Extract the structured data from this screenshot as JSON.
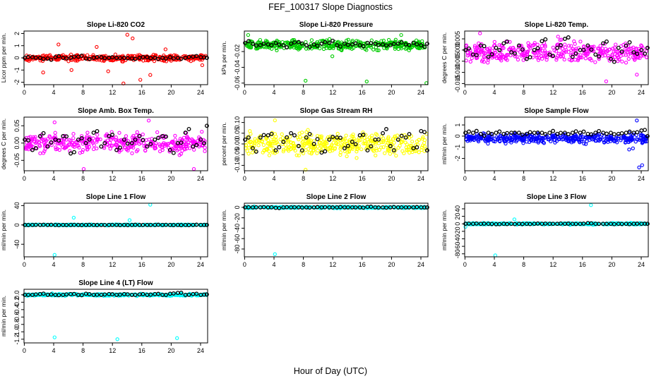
{
  "figure": {
    "title": "FEF_100317  Slope Diagnostics",
    "xlabel": "Hour of Day (UTC)"
  },
  "chart_data": [
    {
      "type": "scatter",
      "title": "Slope Li-820 CO2",
      "ylabel": "Licor ppm per min.",
      "color": "#ff0000",
      "xlim": [
        0,
        24
      ],
      "xticks": [
        0,
        4,
        8,
        12,
        16,
        20,
        24
      ],
      "ylim": [
        -2.2,
        2.2
      ],
      "yticks": [
        -2,
        -1,
        0,
        1,
        2
      ],
      "ytick_labels": [
        "-2",
        "-1",
        "0",
        "1",
        "2"
      ],
      "base_mean": 0,
      "base_spread": 0.35,
      "outliers": [
        [
          13.5,
          1.9
        ],
        [
          14.2,
          1.6
        ],
        [
          13.0,
          -2.1
        ],
        [
          15.2,
          -1.8
        ],
        [
          16.5,
          -1.4
        ],
        [
          2.5,
          -1.2
        ],
        [
          4.5,
          1.1
        ],
        [
          6.2,
          -1.0
        ],
        [
          9.5,
          0.9
        ],
        [
          11.0,
          -1.1
        ],
        [
          18.5,
          0.7
        ],
        [
          23.3,
          -0.6
        ]
      ],
      "hourly": [
        0,
        0.05,
        0,
        -0.05,
        0.05,
        0,
        0,
        0.1,
        -0.05,
        0,
        0.05,
        0,
        0,
        0,
        -0.05,
        0,
        0.05,
        0,
        0,
        0.05,
        0,
        0,
        0.1,
        0.05,
        0
      ]
    },
    {
      "type": "scatter",
      "title": "Slope Li-820 Pressure",
      "ylabel": "kPa per min.",
      "color": "#00cc00",
      "xlim": [
        0,
        24
      ],
      "xticks": [
        0,
        4,
        8,
        12,
        16,
        20,
        24
      ],
      "ylim": [
        -0.062,
        0.006
      ],
      "yticks": [
        -0.06,
        -0.04,
        -0.02
      ],
      "ytick_labels": [
        "-0.06",
        "-0.04",
        "-0.02"
      ],
      "base_mean": -0.012,
      "base_spread": 0.009,
      "outliers": [
        [
          8.0,
          -0.057
        ],
        [
          16.0,
          -0.058
        ],
        [
          23.8,
          -0.06
        ],
        [
          0.5,
          0.001
        ],
        [
          20.5,
          0.001
        ],
        [
          11.5,
          -0.026
        ]
      ],
      "hourly": [
        -0.009,
        -0.01,
        -0.012,
        -0.011,
        -0.009,
        -0.012,
        -0.01,
        -0.008,
        -0.012,
        -0.011,
        -0.01,
        -0.009,
        -0.012,
        -0.01,
        -0.011,
        -0.012,
        -0.009,
        -0.01,
        -0.011,
        -0.012,
        -0.01,
        -0.011,
        -0.009,
        -0.012,
        -0.01
      ]
    },
    {
      "type": "scatter",
      "title": "Slope Li-820 Temp.",
      "ylabel": "degrees C per min.",
      "color": "#ff00ff",
      "xlim": [
        0,
        24
      ],
      "xticks": [
        0,
        4,
        8,
        12,
        16,
        20,
        24
      ],
      "ylim": [
        -0.0155,
        0.0085
      ],
      "yticks": [
        -0.015,
        -0.01,
        -0.005,
        0.0,
        0.005
      ],
      "ytick_labels": [
        "-0.015",
        "-0.010",
        "-0.005",
        "0.000",
        "0.005"
      ],
      "base_mean": -0.001,
      "base_spread": 0.0065,
      "outliers": [
        [
          2.0,
          0.0075
        ],
        [
          18.5,
          -0.014
        ],
        [
          12.2,
          0.006
        ],
        [
          22.5,
          -0.011
        ]
      ],
      "hourly": [
        0,
        -0.002,
        0.002,
        -0.003,
        0.001,
        0.003,
        -0.001,
        0.002,
        -0.004,
        0,
        0.004,
        -0.002,
        0.001,
        0.005,
        -0.003,
        0,
        0.002,
        -0.002,
        0.003,
        -0.004,
        0.001,
        0.002,
        -0.001,
        0,
        0.001
      ]
    },
    {
      "type": "scatter",
      "title": "Slope Amb. Box Temp.",
      "ylabel": "degrees C per min.",
      "color": "#ff00ff",
      "xlim": [
        0,
        24
      ],
      "xticks": [
        0,
        4,
        8,
        12,
        16,
        20,
        24
      ],
      "ylim": [
        -0.08,
        0.075
      ],
      "yticks": [
        -0.05,
        0.0,
        0.05
      ],
      "ytick_labels": [
        "-0.05",
        "0.00",
        "0.05"
      ],
      "base_mean": 0,
      "base_spread": 0.04,
      "outliers": [
        [
          7.8,
          -0.075
        ],
        [
          22.2,
          -0.075
        ],
        [
          16.3,
          0.065
        ],
        [
          4.0,
          0.06
        ]
      ],
      "hourly": [
        0.01,
        -0.02,
        0.02,
        -0.01,
        0.01,
        0.02,
        -0.03,
        0.01,
        0,
        0.03,
        -0.01,
        0.02,
        -0.02,
        0.01,
        0,
        0.02,
        -0.01,
        0.01,
        0.02,
        -0.02,
        0,
        0.03,
        -0.01,
        0.01,
        0.05
      ]
    },
    {
      "type": "scatter",
      "title": "Slope Gas Stream RH",
      "ylabel": "percent per min.",
      "color": "#ffff00",
      "xlim": [
        0,
        24
      ],
      "xticks": [
        0,
        4,
        8,
        12,
        16,
        20,
        24
      ],
      "ylim": [
        -0.125,
        0.125
      ],
      "yticks": [
        -0.1,
        -0.05,
        0.0,
        0.05,
        0.1
      ],
      "ytick_labels": [
        "-0.10",
        "-0.05",
        "0.00",
        "0.05",
        "0.10"
      ],
      "base_mean": 0,
      "base_spread": 0.075,
      "outliers": [
        [
          8.0,
          -0.12
        ],
        [
          4.0,
          0.11
        ]
      ],
      "hourly": [
        0.02,
        -0.02,
        0.03,
        0.04,
        -0.03,
        0.01,
        0.05,
        -0.01,
        0.03,
        0,
        -0.04,
        0.02,
        0.03,
        -0.02,
        0.01,
        0.04,
        -0.03,
        0.02,
        0.05,
        -0.01,
        0.02,
        0.03,
        -0.02,
        0.06,
        -0.03
      ]
    },
    {
      "type": "scatter",
      "title": "Slope Sample Flow",
      "ylabel": "ml/min per min.",
      "color": "#0000ff",
      "xlim": [
        0,
        24
      ],
      "xticks": [
        0,
        4,
        8,
        12,
        16,
        20,
        24
      ],
      "ylim": [
        -3.1,
        1.7
      ],
      "yticks": [
        -2,
        -1,
        0,
        1
      ],
      "ytick_labels": [
        "-2",
        "-1",
        "0",
        "1"
      ],
      "base_mean": -0.2,
      "base_spread": 0.6,
      "outliers": [
        [
          22.8,
          -2.8
        ],
        [
          23.2,
          -2.6
        ],
        [
          22.5,
          1.4
        ],
        [
          21.5,
          -1.2
        ],
        [
          22.0,
          -1.1
        ]
      ],
      "hourly": [
        0.3,
        0.3,
        0.2,
        0.3,
        0.3,
        0.2,
        0.3,
        0.3,
        0.2,
        0.3,
        0.3,
        0.3,
        0.2,
        0.3,
        0.3,
        0.3,
        0.2,
        0.3,
        0.3,
        0.3,
        0.2,
        0.3,
        0.3,
        0.5,
        0
      ]
    },
    {
      "type": "scatter",
      "title": "Slope Line 1 Flow",
      "ylabel": "ml/min per min.",
      "color": "#00ffff",
      "xlim": [
        0,
        24
      ],
      "xticks": [
        0,
        4,
        8,
        12,
        16,
        20,
        24
      ],
      "ylim": [
        -66,
        45
      ],
      "yticks": [
        -40,
        0,
        40
      ],
      "ytick_labels": [
        "-40",
        "0",
        "40"
      ],
      "base_mean": 0,
      "base_spread": 1.5,
      "outliers": [
        [
          4.0,
          -62
        ],
        [
          16.5,
          42
        ],
        [
          6.5,
          15
        ],
        [
          13.8,
          10
        ]
      ],
      "hourly": [
        0,
        0,
        0,
        0,
        0,
        0,
        0,
        0,
        0,
        0,
        0,
        0,
        0,
        0,
        0,
        0,
        0,
        0,
        0,
        0,
        0,
        0,
        0,
        0,
        0
      ]
    },
    {
      "type": "scatter",
      "title": "Slope Line 2 Flow",
      "ylabel": "ml/min per min.",
      "color": "#00ffff",
      "xlim": [
        0,
        24
      ],
      "xticks": [
        0,
        4,
        8,
        12,
        16,
        20,
        24
      ],
      "ylim": [
        -95,
        8
      ],
      "yticks": [
        -80,
        -60,
        -40,
        -20,
        0
      ],
      "ytick_labels": [
        "-80",
        "-60",
        "-40",
        "-20",
        "0"
      ],
      "base_mean": 0,
      "base_spread": 2,
      "outliers": [
        [
          4.0,
          -90
        ]
      ],
      "hourly": [
        0,
        0,
        0,
        0,
        -1,
        0,
        0,
        0,
        0,
        0,
        0,
        0,
        0,
        0,
        0,
        0,
        1,
        0,
        0,
        0,
        0,
        0,
        0,
        0,
        0
      ]
    },
    {
      "type": "scatter",
      "title": "Slope Line 3 Flow",
      "ylabel": "ml/min per min.",
      "color": "#00ffff",
      "xlim": [
        0,
        24
      ],
      "xticks": [
        0,
        4,
        8,
        12,
        16,
        20,
        24
      ],
      "ylim": [
        -88,
        55
      ],
      "yticks": [
        -80,
        -60,
        -40,
        -20,
        0,
        20,
        40
      ],
      "ytick_labels": [
        "-80",
        "-60",
        "-40",
        "-20",
        "0",
        "20",
        "40"
      ],
      "base_mean": 0,
      "base_spread": 3,
      "outliers": [
        [
          4.0,
          -84
        ],
        [
          16.5,
          50
        ],
        [
          6.5,
          12
        ],
        [
          0.1,
          -8
        ]
      ],
      "hourly": [
        0,
        0,
        0,
        0,
        -1,
        0,
        0,
        0,
        0,
        0,
        0,
        0,
        0,
        0,
        0,
        0,
        2,
        0,
        0,
        0,
        0,
        0,
        0,
        0,
        0
      ]
    },
    {
      "type": "scatter",
      "title": "Slope Line 4 (LT) Flow",
      "ylabel": "ml/min per min.",
      "color": "#00ffff",
      "xlim": [
        0,
        24
      ],
      "xticks": [
        0,
        4,
        8,
        12,
        16,
        20,
        24
      ],
      "ylim": [
        -1.3,
        0.15
      ],
      "yticks": [
        -1.2,
        -1.0,
        -0.8,
        -0.6,
        -0.4,
        -0.2,
        0.0
      ],
      "ytick_labels": [
        "-1.2",
        "-1.0",
        "-0.8",
        "-0.6",
        "-0.4",
        "-0.2",
        "0.0"
      ],
      "base_mean": 0,
      "base_spread": 0.04,
      "outliers": [
        [
          4.0,
          -1.15
        ],
        [
          12.2,
          -1.2
        ],
        [
          20.0,
          -1.17
        ]
      ],
      "hourly": [
        0,
        0,
        0.02,
        0,
        0,
        0,
        0.02,
        0,
        0.03,
        0,
        0,
        0.02,
        0,
        0.02,
        0,
        0.01,
        0,
        0.02,
        0,
        0.03,
        0.05,
        0,
        0.02,
        0,
        0.01
      ]
    }
  ]
}
